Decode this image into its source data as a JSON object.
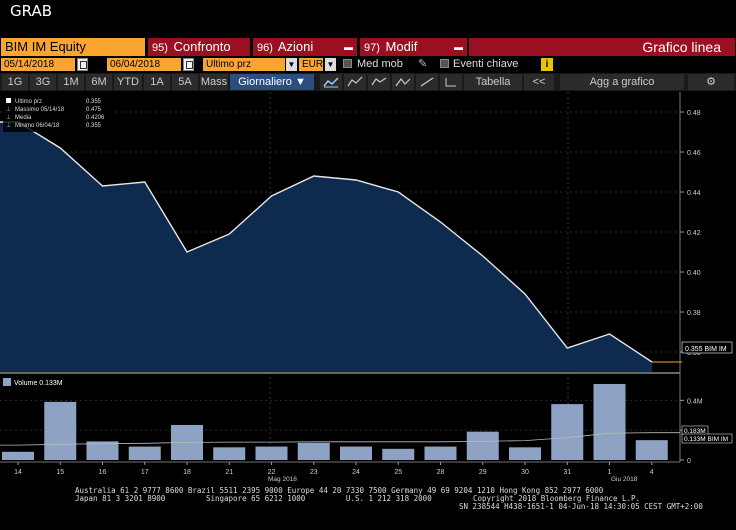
{
  "window": {
    "title": "GRAB"
  },
  "toolbar1": {
    "ticker": "BIM IM Equity",
    "tabs": [
      {
        "num": "95)",
        "label": "Confronto"
      },
      {
        "num": "96)",
        "label": "Azioni"
      },
      {
        "num": "97)",
        "label": "Modif"
      }
    ],
    "view_title": "Grafico linea"
  },
  "toolbar2": {
    "start_date": "05/14/2018",
    "end_date": "06/04/2018",
    "price_field": "Ultimo prz",
    "currency": "EUR",
    "med_mob": "Med mob",
    "eventi": "Eventi chiave",
    "info_icon": "i",
    "datetime": "",
    "pencil_icon": "pencil-icon"
  },
  "toolbar3": {
    "periods": [
      "1G",
      "3G",
      "1M",
      "6M",
      "YTD",
      "1A",
      "5A",
      "Mass"
    ],
    "frequency": "Giornaliero ▼",
    "tabella": "Tabella",
    "collapse": "<<",
    "add_chart": "Agg a grafico",
    "gear_icon": "⚙"
  },
  "legend": {
    "rows": [
      {
        "label": "Ultimo prz",
        "value": "0.355"
      },
      {
        "label": "Massimo 05/14/18",
        "value": "0.475"
      },
      {
        "label": "Media",
        "value": "0.4206"
      },
      {
        "label": "Minimo 06/04/18",
        "value": "0.355"
      }
    ]
  },
  "volume_legend": "Volume 0.133M",
  "price_tag": "0.355 BIM IM",
  "volume_tags": [
    "0.183M",
    "0.133M BIM IM"
  ],
  "month_labels": [
    "Mag 2018",
    "Giu 2018"
  ],
  "colors": {
    "accent": "#f9a530",
    "tab_red": "#9a1020",
    "area": "#0e2a4f",
    "bar": "#8ea3c4"
  },
  "chart_data": [
    {
      "type": "area",
      "x": [
        "14",
        "15",
        "16",
        "17",
        "18",
        "21",
        "22",
        "23",
        "24",
        "25",
        "28",
        "29",
        "30",
        "31",
        "1",
        "4"
      ],
      "values": [
        0.475,
        0.462,
        0.443,
        0.445,
        0.41,
        0.419,
        0.438,
        0.448,
        0.446,
        0.44,
        0.425,
        0.408,
        0.389,
        0.362,
        0.369,
        0.355
      ],
      "ylim": [
        0.35,
        0.49
      ],
      "yticks": [
        "0.48",
        "0.46",
        "0.44",
        "0.42",
        "0.40",
        "0.38",
        "0.36"
      ]
    },
    {
      "type": "bar",
      "x": [
        "14",
        "15",
        "16",
        "17",
        "18",
        "21",
        "22",
        "23",
        "24",
        "25",
        "28",
        "29",
        "30",
        "31",
        "1",
        "4"
      ],
      "values": [
        0.055,
        0.39,
        0.125,
        0.09,
        0.235,
        0.085,
        0.09,
        0.115,
        0.09,
        0.075,
        0.09,
        0.19,
        0.085,
        0.375,
        0.51,
        0.133
      ],
      "moving_avg": [
        0.1,
        0.105,
        0.11,
        0.112,
        0.118,
        0.12,
        0.12,
        0.122,
        0.122,
        0.122,
        0.122,
        0.125,
        0.13,
        0.15,
        0.18,
        0.183
      ],
      "ylim": [
        0,
        0.55
      ],
      "yticks": [
        "0.4M",
        "0.2M",
        "0"
      ]
    }
  ],
  "footer": {
    "line1": "Australia 61 2 9777 8600 Brazil 5511 2395 9000 Europe 44 20 7330 7500 Germany 49 69 9204 1210 Hong Kong 852 2977 6000",
    "line2a": "Japan 81 3 3201 8900         Singapore 65 6212 1000         U.S. 1 212 318 2000",
    "line2b": "Copyright 2018 Bloomberg Finance L.P.",
    "line3": "SN 238544 H438-1651-1 04-Jun-18 14:30:05 CEST GMT+2:00"
  }
}
